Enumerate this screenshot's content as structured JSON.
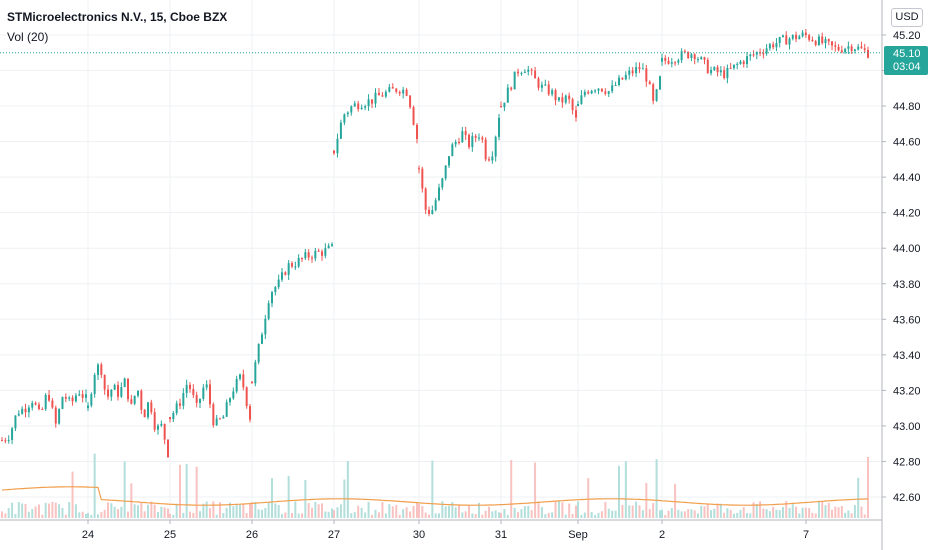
{
  "header": {
    "title": "STMicroelectronics N.V., 15, Cboe BZX",
    "volume_indicator": "Vol (20)",
    "currency": "USD"
  },
  "last_price": {
    "value": "45.10",
    "countdown": "03:04"
  },
  "colors": {
    "up": "#26a69a",
    "down": "#ef5350",
    "vol_up": "#b2dfdb",
    "vol_down": "#f8c2c0",
    "vol_ma": "#f19e4b",
    "grid": "#eef0f3"
  },
  "chart_data": {
    "type": "candlestick",
    "title": "STMicroelectronics N.V., 15, Cboe BZX",
    "interval": "15",
    "currency": "USD",
    "y_axis": {
      "ticks": [
        "42.60",
        "42.80",
        "43.00",
        "43.20",
        "43.40",
        "43.60",
        "43.80",
        "44.00",
        "44.20",
        "44.40",
        "44.60",
        "44.80",
        "45.00",
        "45.20"
      ],
      "range": [
        42.44,
        45.32
      ]
    },
    "x_axis": {
      "ticks": [
        "24",
        "25",
        "26",
        "27",
        "30",
        "31",
        "Sep",
        "2",
        "7"
      ]
    },
    "last_price": 45.1,
    "grid": true,
    "sessions": [
      {
        "label": "24",
        "path": [
          [
            42.92,
            42.95
          ],
          [
            43.08,
            43.1
          ],
          [
            43.15,
            43.05
          ],
          [
            43.2,
            43.0
          ],
          [
            43.18,
            43.12
          ],
          [
            43.2,
            43.15
          ]
        ]
      },
      {
        "label": "25",
        "path": [
          [
            43.1,
            43.3
          ],
          [
            43.35,
            43.15
          ],
          [
            43.22,
            43.18
          ],
          [
            43.25,
            43.1
          ],
          [
            43.22,
            43.05
          ],
          [
            43.15,
            42.98
          ],
          [
            43.0,
            42.85
          ]
        ]
      },
      {
        "label": "26",
        "path": [
          [
            43.05,
            43.12
          ],
          [
            43.25,
            43.1
          ],
          [
            43.25,
            43.0
          ],
          [
            43.05,
            43.2
          ],
          [
            43.28,
            43.05
          ]
        ]
      },
      {
        "label": "27",
        "path": [
          [
            43.25,
            43.5
          ],
          [
            43.75,
            43.8
          ],
          [
            43.9,
            43.92
          ],
          [
            43.95,
            43.97
          ],
          [
            43.98,
            44.0
          ]
        ]
      },
      {
        "label": "30",
        "path": [
          [
            44.55,
            44.75
          ],
          [
            44.8,
            44.82
          ],
          [
            44.83,
            44.86
          ],
          [
            44.88,
            44.9
          ],
          [
            44.88,
            44.62
          ]
        ]
      },
      {
        "label": "31",
        "path": [
          [
            44.45,
            44.22
          ],
          [
            44.2,
            44.3
          ],
          [
            44.4,
            44.55
          ],
          [
            44.6,
            44.65
          ],
          [
            44.58,
            44.62
          ],
          [
            44.65,
            44.5
          ],
          [
            44.55,
            44.75
          ]
        ]
      },
      {
        "label": "Sep",
        "path": [
          [
            44.8,
            44.9
          ],
          [
            45.0,
            45.02
          ],
          [
            44.95,
            44.9
          ],
          [
            44.88,
            44.82
          ],
          [
            44.85,
            44.72
          ]
        ]
      },
      {
        "label": "2",
        "path": [
          [
            44.8,
            44.88
          ],
          [
            44.9,
            44.91
          ],
          [
            44.9,
            44.88
          ],
          [
            44.92,
            44.95
          ],
          [
            44.98,
            45.0
          ],
          [
            45.02,
            44.95
          ],
          [
            44.8,
            44.95
          ]
        ]
      },
      {
        "label": "7",
        "path": [
          [
            45.05,
            45.08
          ],
          [
            45.1,
            45.0
          ],
          [
            44.98,
            45.05
          ],
          [
            45.1,
            45.15
          ],
          [
            45.18,
            45.2
          ],
          [
            45.16,
            45.12
          ],
          [
            45.14,
            45.1
          ]
        ]
      }
    ],
    "volume_ma_label": "Vol (20)"
  }
}
